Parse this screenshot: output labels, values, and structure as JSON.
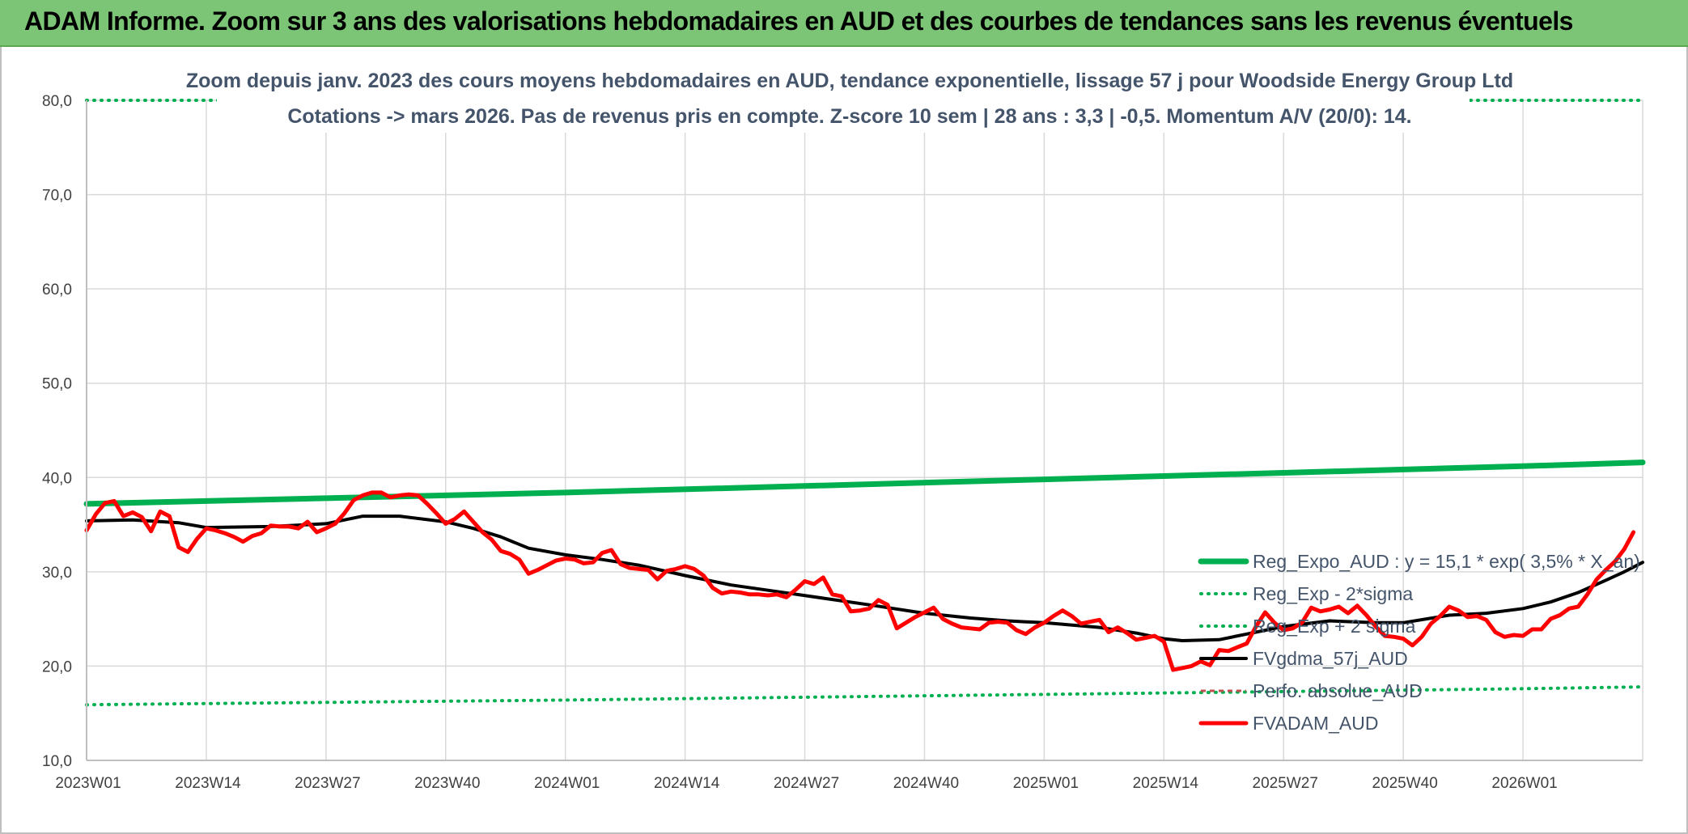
{
  "header": {
    "title": "ADAM Informe. Zoom sur 3 ans des valorisations hebdomadaires en AUD et des courbes de tendances sans les revenus éventuels"
  },
  "chart_data": {
    "type": "line",
    "title_lines": [
      "Zoom depuis janv. 2023 des cours moyens hebdomadaires en AUD, tendance exponentielle, lissage 57 j pour Woodside Energy Group Ltd",
      "Cotations -> mars 2026. Pas de revenus pris en compte. Z-score 10 sem | 28 ans : 3,3 | -0,5. Momentum A/V (20/0): 14."
    ],
    "ylim": [
      10,
      80
    ],
    "y_ticks": [
      "10,0",
      "20,0",
      "30,0",
      "40,0",
      "50,0",
      "60,0",
      "70,0",
      "80,0"
    ],
    "x_ticks": [
      "2023W01",
      "2023W14",
      "2023W27",
      "2023W40",
      "2024W01",
      "2024W14",
      "2024W27",
      "2024W40",
      "2025W01",
      "2025W14",
      "2025W27",
      "2025W40",
      "2026W01"
    ],
    "x_tick_index": [
      0,
      13,
      26,
      39,
      52,
      65,
      78,
      91,
      104,
      117,
      130,
      143,
      156
    ],
    "n_weeks": 170,
    "grid": true,
    "legend_position": "right",
    "colors": {
      "reg_expo": "#00b050",
      "reg_band": "#00b050",
      "fvgdma": "#000000",
      "perfo": "#c0504d",
      "fvadam": "#ff0000",
      "grid": "#d9d9d9",
      "axis": "#bfbfbf"
    },
    "series": [
      {
        "key": "reg_expo",
        "name": "Reg_Expo_AUD : y = 15,1 * exp( 3,5% *  X_an)",
        "style": "solid-thick",
        "points": [
          [
            0,
            37.2
          ],
          [
            26,
            37.8
          ],
          [
            52,
            38.4
          ],
          [
            78,
            39.1
          ],
          [
            104,
            39.8
          ],
          [
            130,
            40.5
          ],
          [
            156,
            41.2
          ],
          [
            169,
            41.6
          ]
        ]
      },
      {
        "key": "reg_minus",
        "name": "Reg_Exp - 2*sigma",
        "style": "dotted",
        "points": [
          [
            0,
            15.9
          ],
          [
            52,
            16.4
          ],
          [
            104,
            17.0
          ],
          [
            156,
            17.6
          ],
          [
            169,
            17.8
          ]
        ]
      },
      {
        "key": "reg_plus",
        "name": "Reg_Exp + 2 sigma",
        "style": "dotted",
        "points": [
          [
            0,
            80.0
          ],
          [
            169,
            80.0
          ]
        ]
      },
      {
        "key": "fvgdma",
        "name": "FVgdma_57j_AUD",
        "style": "solid",
        "points": [
          [
            0,
            35.4
          ],
          [
            5,
            35.5
          ],
          [
            10,
            35.2
          ],
          [
            13,
            34.7
          ],
          [
            20,
            34.8
          ],
          [
            26,
            35.1
          ],
          [
            30,
            35.9
          ],
          [
            34,
            35.9
          ],
          [
            39,
            35.3
          ],
          [
            42,
            34.6
          ],
          [
            45,
            33.7
          ],
          [
            48,
            32.5
          ],
          [
            52,
            31.8
          ],
          [
            56,
            31.3
          ],
          [
            60,
            30.7
          ],
          [
            65,
            29.6
          ],
          [
            70,
            28.6
          ],
          [
            75,
            27.9
          ],
          [
            80,
            27.2
          ],
          [
            85,
            26.5
          ],
          [
            91,
            25.6
          ],
          [
            96,
            25.1
          ],
          [
            100,
            24.8
          ],
          [
            104,
            24.6
          ],
          [
            110,
            24.1
          ],
          [
            114,
            23.5
          ],
          [
            117,
            22.9
          ],
          [
            119,
            22.7
          ],
          [
            123,
            22.8
          ],
          [
            126,
            23.4
          ],
          [
            130,
            24.2
          ],
          [
            135,
            24.8
          ],
          [
            140,
            24.6
          ],
          [
            143,
            24.6
          ],
          [
            148,
            25.4
          ],
          [
            152,
            25.6
          ],
          [
            156,
            26.1
          ],
          [
            159,
            26.8
          ],
          [
            162,
            27.8
          ],
          [
            165,
            29.1
          ],
          [
            167,
            30.0
          ],
          [
            169,
            31.0
          ]
        ]
      },
      {
        "key": "perfo",
        "name": "Perfo. absolue_AUD",
        "style": "dashed",
        "points": []
      },
      {
        "key": "fvadam",
        "name": "FVADAM_AUD",
        "style": "solid-thick",
        "points": [
          [
            0,
            34.4
          ],
          [
            1,
            36.1
          ],
          [
            2,
            37.3
          ],
          [
            3,
            37.5
          ],
          [
            4,
            35.9
          ],
          [
            5,
            36.3
          ],
          [
            6,
            35.8
          ],
          [
            7,
            34.3
          ],
          [
            8,
            36.4
          ],
          [
            9,
            35.9
          ],
          [
            10,
            32.6
          ],
          [
            11,
            32.1
          ],
          [
            12,
            33.5
          ],
          [
            13,
            34.6
          ],
          [
            14,
            34.4
          ],
          [
            15,
            34.1
          ],
          [
            16,
            33.7
          ],
          [
            17,
            33.2
          ],
          [
            18,
            33.8
          ],
          [
            19,
            34.1
          ],
          [
            20,
            34.9
          ],
          [
            21,
            34.8
          ],
          [
            22,
            34.8
          ],
          [
            23,
            34.6
          ],
          [
            24,
            35.3
          ],
          [
            25,
            34.2
          ],
          [
            26,
            34.6
          ],
          [
            27,
            35.1
          ],
          [
            28,
            36.2
          ],
          [
            29,
            37.6
          ],
          [
            30,
            38.1
          ],
          [
            31,
            38.4
          ],
          [
            32,
            38.4
          ],
          [
            33,
            37.9
          ],
          [
            34,
            38.1
          ],
          [
            35,
            38.2
          ],
          [
            36,
            38.1
          ],
          [
            37,
            37.2
          ],
          [
            38,
            36.2
          ],
          [
            39,
            35.1
          ],
          [
            40,
            35.6
          ],
          [
            41,
            36.4
          ],
          [
            42,
            35.3
          ],
          [
            43,
            34.2
          ],
          [
            44,
            33.4
          ],
          [
            45,
            32.2
          ],
          [
            46,
            31.9
          ],
          [
            47,
            31.3
          ],
          [
            48,
            29.8
          ],
          [
            49,
            30.2
          ],
          [
            50,
            30.7
          ],
          [
            51,
            31.2
          ],
          [
            52,
            31.4
          ],
          [
            53,
            31.3
          ],
          [
            54,
            30.9
          ],
          [
            55,
            31.0
          ],
          [
            56,
            32.0
          ],
          [
            57,
            32.3
          ],
          [
            58,
            30.8
          ],
          [
            59,
            30.4
          ],
          [
            60,
            30.3
          ],
          [
            61,
            30.2
          ],
          [
            62,
            29.2
          ],
          [
            63,
            30.1
          ],
          [
            64,
            30.3
          ],
          [
            65,
            30.6
          ],
          [
            66,
            30.3
          ],
          [
            67,
            29.6
          ],
          [
            68,
            28.3
          ],
          [
            69,
            27.7
          ],
          [
            70,
            27.9
          ],
          [
            71,
            27.8
          ],
          [
            72,
            27.6
          ],
          [
            73,
            27.6
          ],
          [
            74,
            27.5
          ],
          [
            75,
            27.6
          ],
          [
            76,
            27.3
          ],
          [
            77,
            28.1
          ],
          [
            78,
            29.0
          ],
          [
            79,
            28.7
          ],
          [
            80,
            29.4
          ],
          [
            81,
            27.6
          ],
          [
            82,
            27.4
          ],
          [
            83,
            25.8
          ],
          [
            84,
            25.9
          ],
          [
            85,
            26.1
          ],
          [
            86,
            27.0
          ],
          [
            87,
            26.5
          ],
          [
            88,
            24.0
          ],
          [
            89,
            24.6
          ],
          [
            90,
            25.2
          ],
          [
            91,
            25.7
          ],
          [
            92,
            26.2
          ],
          [
            93,
            25.0
          ],
          [
            94,
            24.5
          ],
          [
            95,
            24.1
          ],
          [
            96,
            24.0
          ],
          [
            97,
            23.9
          ],
          [
            98,
            24.6
          ],
          [
            99,
            24.7
          ],
          [
            100,
            24.6
          ],
          [
            101,
            23.8
          ],
          [
            102,
            23.4
          ],
          [
            103,
            24.1
          ],
          [
            104,
            24.6
          ],
          [
            105,
            25.3
          ],
          [
            106,
            25.9
          ],
          [
            107,
            25.3
          ],
          [
            108,
            24.5
          ],
          [
            109,
            24.7
          ],
          [
            110,
            24.9
          ],
          [
            111,
            23.6
          ],
          [
            112,
            24.1
          ],
          [
            113,
            23.5
          ],
          [
            114,
            22.8
          ],
          [
            115,
            23.0
          ],
          [
            116,
            23.2
          ],
          [
            117,
            22.6
          ],
          [
            118,
            19.6
          ],
          [
            119,
            19.8
          ],
          [
            120,
            20.0
          ],
          [
            121,
            20.5
          ],
          [
            122,
            20.1
          ],
          [
            123,
            21.7
          ],
          [
            124,
            21.6
          ],
          [
            125,
            22.0
          ],
          [
            126,
            22.4
          ],
          [
            127,
            24.2
          ],
          [
            128,
            25.7
          ],
          [
            129,
            24.6
          ],
          [
            130,
            23.8
          ],
          [
            131,
            24.0
          ],
          [
            132,
            24.6
          ],
          [
            133,
            26.2
          ],
          [
            134,
            25.8
          ],
          [
            135,
            26.0
          ],
          [
            136,
            26.3
          ],
          [
            137,
            25.6
          ],
          [
            138,
            26.4
          ],
          [
            139,
            25.4
          ],
          [
            140,
            24.2
          ],
          [
            141,
            23.2
          ],
          [
            142,
            23.1
          ],
          [
            143,
            22.9
          ],
          [
            144,
            22.2
          ],
          [
            145,
            23.1
          ],
          [
            146,
            24.5
          ],
          [
            147,
            25.3
          ],
          [
            148,
            26.3
          ],
          [
            149,
            25.9
          ],
          [
            150,
            25.2
          ],
          [
            151,
            25.3
          ],
          [
            152,
            24.9
          ],
          [
            153,
            23.6
          ],
          [
            154,
            23.1
          ],
          [
            155,
            23.3
          ],
          [
            156,
            23.2
          ],
          [
            157,
            23.9
          ],
          [
            158,
            23.9
          ],
          [
            159,
            25.0
          ],
          [
            160,
            25.4
          ],
          [
            161,
            26.1
          ],
          [
            162,
            26.3
          ],
          [
            163,
            27.6
          ],
          [
            164,
            29.2
          ],
          [
            165,
            30.2
          ],
          [
            166,
            31.1
          ],
          [
            167,
            32.4
          ],
          [
            168,
            34.2
          ]
        ]
      }
    ]
  }
}
